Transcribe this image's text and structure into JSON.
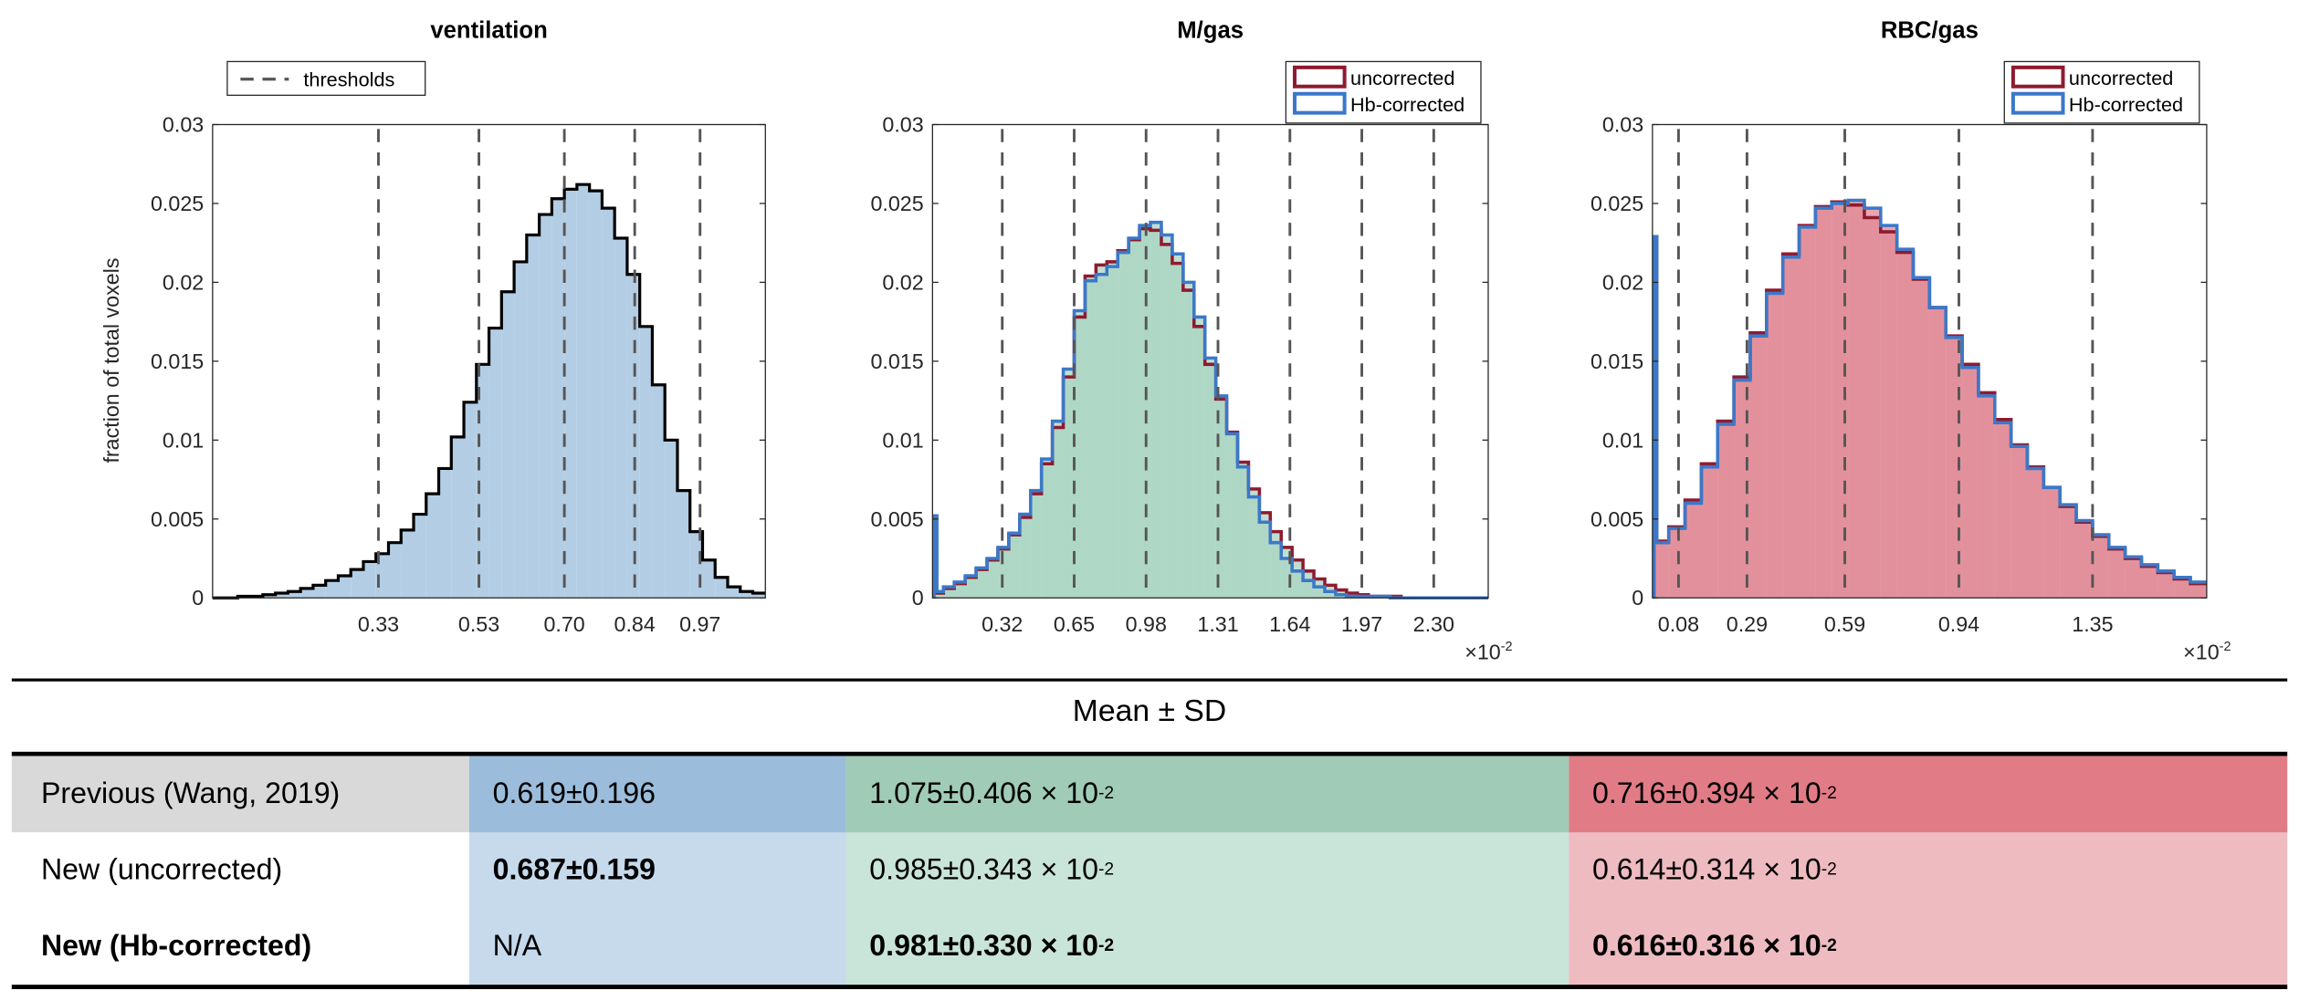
{
  "figure": {
    "y_axis_label": "fraction of total voxels",
    "exponent_label_base": "×10",
    "exponent_label_exp": "-2"
  },
  "chart_data": [
    {
      "type": "bar",
      "subtype": "histogram",
      "title": "ventilation",
      "ylabel": "fraction of total voxels",
      "xlabel": "",
      "xlim": [
        0,
        1.1
      ],
      "ylim": [
        0,
        0.03
      ],
      "yticks": [
        0,
        0.005,
        0.01,
        0.015,
        0.02,
        0.025,
        0.03
      ],
      "ytick_labels": [
        "0",
        "0.005",
        "0.01",
        "0.015",
        "0.02",
        "0.025",
        "0.03"
      ],
      "thresholds": [
        0.33,
        0.53,
        0.7,
        0.84,
        0.97
      ],
      "xtick_labels": [
        "0.33",
        "0.53",
        "0.70",
        "0.84",
        "0.97"
      ],
      "legend": {
        "position": "top-left",
        "entries": [
          "thresholds"
        ]
      },
      "bin_start": 0,
      "bin_width": 0.025,
      "fill_color": "#b3cde4",
      "series": [
        {
          "name": "ventilation",
          "stroke": "#000000",
          "fill": true,
          "values": [
            0.0,
            0.0,
            0.0001,
            0.0001,
            0.0002,
            0.0003,
            0.0004,
            0.0006,
            0.0008,
            0.0011,
            0.0014,
            0.0018,
            0.0023,
            0.0028,
            0.0035,
            0.0043,
            0.0053,
            0.0066,
            0.0082,
            0.0102,
            0.0124,
            0.0148,
            0.0171,
            0.0194,
            0.0213,
            0.023,
            0.0243,
            0.0253,
            0.0259,
            0.0262,
            0.0258,
            0.0247,
            0.0228,
            0.0205,
            0.0172,
            0.0135,
            0.01,
            0.0068,
            0.0042,
            0.0024,
            0.0013,
            0.0007,
            0.0004,
            0.0003
          ]
        }
      ]
    },
    {
      "type": "bar",
      "subtype": "histogram",
      "title": "M/gas",
      "xlim": [
        0,
        2.55
      ],
      "x_scale_label": "×10^-2",
      "ylim": [
        0,
        0.03
      ],
      "yticks": [
        0,
        0.005,
        0.01,
        0.015,
        0.02,
        0.025,
        0.03
      ],
      "ytick_labels": [
        "0",
        "0.005",
        "0.01",
        "0.015",
        "0.02",
        "0.025",
        "0.03"
      ],
      "thresholds": [
        0.32,
        0.65,
        0.98,
        1.31,
        1.64,
        1.97,
        2.3
      ],
      "xtick_labels": [
        "0.32",
        "0.65",
        "0.98",
        "1.31",
        "1.64",
        "1.97",
        "2.30"
      ],
      "legend": {
        "position": "top-right",
        "entries": [
          "uncorrected",
          "Hb-corrected"
        ]
      },
      "bin_start": 0,
      "bin_width": 0.05,
      "fill_color": "#a9d4c1",
      "series": [
        {
          "name": "uncorrected",
          "stroke": "#8e1b30",
          "fill": true,
          "values": [
            0.0003,
            0.0006,
            0.0009,
            0.0013,
            0.0018,
            0.0024,
            0.0031,
            0.004,
            0.0051,
            0.0066,
            0.0085,
            0.0108,
            0.014,
            0.0178,
            0.0204,
            0.0211,
            0.0213,
            0.022,
            0.0227,
            0.0234,
            0.0233,
            0.0224,
            0.0212,
            0.0195,
            0.0172,
            0.0148,
            0.0126,
            0.0105,
            0.0086,
            0.0069,
            0.0054,
            0.0042,
            0.0032,
            0.0024,
            0.0017,
            0.0012,
            0.0008,
            0.0005,
            0.0003,
            0.0002,
            0.0001,
            0.0001,
            0.0001,
            0,
            0,
            0,
            0,
            0,
            0,
            0,
            0
          ]
        },
        {
          "name": "Hb-corrected",
          "stroke": "#3b78c9",
          "fill": true,
          "edge_spike": 0.0052,
          "values": [
            0.0004,
            0.0007,
            0.001,
            0.0014,
            0.0019,
            0.0025,
            0.0032,
            0.0041,
            0.0053,
            0.0068,
            0.0088,
            0.0112,
            0.0145,
            0.0182,
            0.0201,
            0.0205,
            0.021,
            0.0219,
            0.0228,
            0.0236,
            0.0238,
            0.023,
            0.0218,
            0.02,
            0.0178,
            0.0152,
            0.0128,
            0.0104,
            0.0083,
            0.0064,
            0.0048,
            0.0035,
            0.0025,
            0.0017,
            0.0011,
            0.0007,
            0.0004,
            0.0002,
            0.0001,
            0.0001,
            0.0001,
            0.0001,
            0,
            0,
            0,
            0,
            0,
            0,
            0,
            0,
            0
          ]
        }
      ]
    },
    {
      "type": "bar",
      "subtype": "histogram",
      "title": "RBC/gas",
      "xlim": [
        0,
        1.7
      ],
      "x_scale_label": "×10^-2",
      "ylim": [
        0,
        0.03
      ],
      "yticks": [
        0,
        0.005,
        0.01,
        0.015,
        0.02,
        0.025,
        0.03
      ],
      "ytick_labels": [
        "0",
        "0.005",
        "0.01",
        "0.015",
        "0.02",
        "0.025",
        "0.03"
      ],
      "thresholds": [
        0.08,
        0.29,
        0.59,
        0.94,
        1.35
      ],
      "xtick_labels": [
        "0.08",
        "0.29",
        "0.59",
        "0.94",
        "1.35"
      ],
      "legend": {
        "position": "top-right",
        "entries": [
          "uncorrected",
          "Hb-corrected"
        ]
      },
      "bin_start": 0,
      "bin_width": 0.05,
      "fill_color": "#e08a95",
      "series": [
        {
          "name": "uncorrected",
          "stroke": "#8e1b30",
          "fill": true,
          "edge_spike": 0.0229,
          "values": [
            0.0036,
            0.0045,
            0.0062,
            0.0085,
            0.0112,
            0.014,
            0.0168,
            0.0195,
            0.0218,
            0.0236,
            0.0248,
            0.0251,
            0.0249,
            0.0241,
            0.0232,
            0.0219,
            0.0202,
            0.0184,
            0.0166,
            0.0148,
            0.013,
            0.0113,
            0.0097,
            0.0083,
            0.007,
            0.0058,
            0.0048,
            0.0039,
            0.0031,
            0.0025,
            0.002,
            0.0016,
            0.0012,
            0.0009
          ]
        },
        {
          "name": "Hb-corrected",
          "stroke": "#3b78c9",
          "fill": true,
          "edge_spike": 0.0229,
          "values": [
            0.0035,
            0.0044,
            0.006,
            0.0083,
            0.011,
            0.0138,
            0.0166,
            0.0193,
            0.0216,
            0.0235,
            0.0247,
            0.025,
            0.0252,
            0.0247,
            0.0236,
            0.0221,
            0.0203,
            0.0184,
            0.0165,
            0.0146,
            0.0128,
            0.0111,
            0.0096,
            0.0082,
            0.007,
            0.0059,
            0.0049,
            0.004,
            0.0032,
            0.0026,
            0.0021,
            0.0017,
            0.0013,
            0.001
          ]
        }
      ]
    }
  ],
  "table": {
    "header": "Mean ± SD",
    "rows": [
      {
        "label": "Previous (Wang, 2019)",
        "label_bold": false,
        "ventilation": {
          "text": "0.619±0.196",
          "bold": false
        },
        "mgas": {
          "text": "1.075±0.406 × 10",
          "exp": "-2",
          "bold": false
        },
        "rbcgas": {
          "text": "0.716±0.394 × 10",
          "exp": "-2",
          "bold": false
        }
      },
      {
        "label": "New (uncorrected)",
        "label_bold": false,
        "ventilation": {
          "text": "0.687±0.159",
          "bold": true
        },
        "mgas": {
          "text": "0.985±0.343 × 10",
          "exp": "-2",
          "bold": false
        },
        "rbcgas": {
          "text": "0.614±0.314 × 10",
          "exp": "-2",
          "bold": false
        }
      },
      {
        "label": "New (Hb-corrected)",
        "label_bold": true,
        "ventilation": {
          "text": "N/A",
          "bold": false
        },
        "mgas": {
          "text": "0.981±0.330 × 10",
          "exp": "-2",
          "bold": true
        },
        "rbcgas": {
          "text": "0.616±0.316 × 10",
          "exp": "-2",
          "bold": true
        }
      }
    ],
    "colors": {
      "label_prev": "#d9d9d9",
      "vent_dark": "#9bbddb",
      "vent_light": "#c6daec",
      "mgas_dark": "#a0cbb7",
      "mgas_light": "#c9e4d8",
      "rbc_dark": "#e17c87",
      "rbc_light": "#eebbc1"
    }
  }
}
